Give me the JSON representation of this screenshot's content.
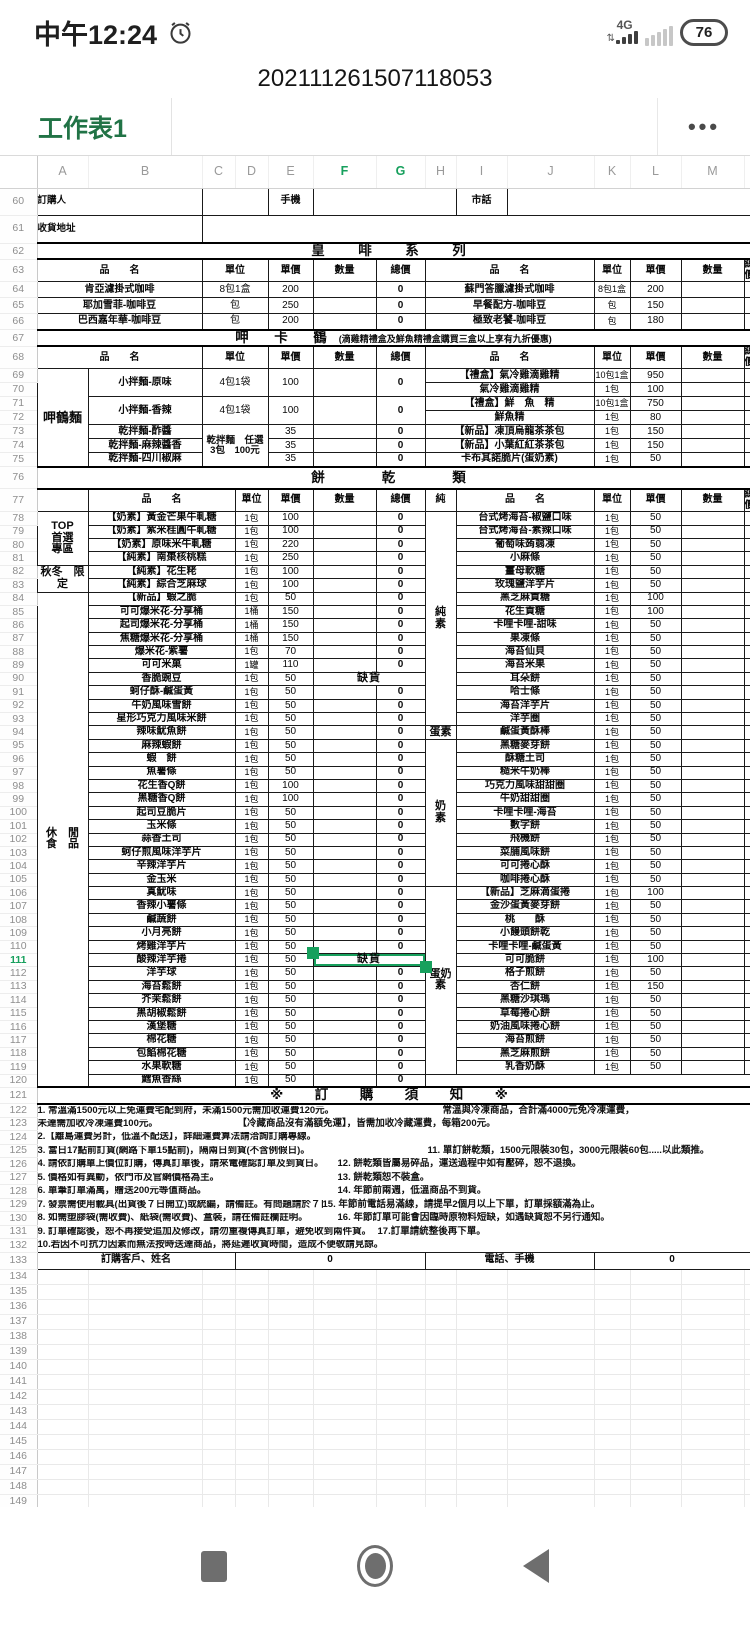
{
  "status_bar": {
    "time": "中午12:24",
    "network": "4G",
    "battery": "76"
  },
  "title_bar": {
    "title": "202111261507118053"
  },
  "tab_bar": {
    "sheet_tab": "工作表1",
    "menu": "•••"
  },
  "grid": {
    "columns": [
      "A",
      "B",
      "C",
      "D",
      "E",
      "F",
      "G",
      "H",
      "I",
      "J",
      "K",
      "L",
      "M"
    ],
    "selected_columns": [
      "F",
      "G"
    ],
    "rows": {
      "start": 60,
      "end": 150
    },
    "selected_row": 111
  },
  "order_info": {
    "buyer": "訂購人",
    "mobile": "手機",
    "tel": "市話",
    "address": "收貨地址"
  },
  "table_headers": {
    "name": "品　　名",
    "unit": "單位",
    "price": "單價",
    "qty": "數量",
    "total": "總價"
  },
  "oos_label": "缺貨",
  "coffee": {
    "title": "皇　啡　系　列",
    "rows": [
      {
        "l": [
          "肯亞濾掛式咖啡",
          "8包1盒",
          "200",
          "0"
        ],
        "r": [
          "蘇門答臘濾掛式咖啡",
          "8包1盒",
          "200"
        ]
      },
      {
        "l": [
          "耶加雪菲-咖啡豆",
          "包",
          "250",
          "0"
        ],
        "r": [
          "早餐配方-咖啡豆",
          "包",
          "150"
        ]
      },
      {
        "l": [
          "巴西嘉年華-咖啡豆",
          "包",
          "200",
          "0"
        ],
        "r": [
          "極致老饕-咖啡豆",
          "包",
          "180"
        ]
      }
    ]
  },
  "noodle": {
    "title": "呷　卡　鶴",
    "note": "(滴雞精禮盒及鮮魚精禮盒購買三盒以上享有九折優惠)",
    "category": "呷鶴麵",
    "combo_unit": "乾拌麵　任選\n3包　100元",
    "left": [
      {
        "name": "小拌麵-原味",
        "unit": "4包1袋",
        "price": "100",
        "total": "0",
        "span": 2
      },
      {
        "name": "小拌麵-香辣",
        "unit": "4包1袋",
        "price": "100",
        "total": "0",
        "span": 2
      },
      {
        "name": "乾拌麵-酢醬",
        "price": "35",
        "total": "0"
      },
      {
        "name": "乾拌麵-麻辣醬香",
        "price": "35",
        "total": "0"
      },
      {
        "name": "乾拌麵-四川椒麻",
        "price": "35",
        "total": "0"
      }
    ],
    "right": [
      [
        "【禮盒】氣冷雞滴雞精",
        "10包1盒",
        "950"
      ],
      [
        "氣冷雞滴雞精",
        "1包",
        "100"
      ],
      [
        "【禮盒】鮮　魚　精",
        "10包1盒",
        "750"
      ],
      [
        "鮮魚精",
        "1包",
        "80"
      ],
      [
        "【新品】凍頂烏龍茶茶包",
        "1包",
        "150"
      ],
      [
        "【新品】小葉紅紅茶茶包",
        "1包",
        "150"
      ],
      [
        "卡布其諾脆片(蛋奶素)",
        "1包",
        "50"
      ]
    ]
  },
  "cookie": {
    "title": "餅　　乾　　類",
    "pure_header": "純",
    "left_categories": [
      {
        "label": "TOP\n首選\n專區",
        "len": 4
      },
      {
        "label": "秋冬　限定",
        "len": 2
      },
      {
        "label": "休　閒\n食　品",
        "len": 37
      }
    ],
    "right_categories": [
      {
        "label": "純\n素",
        "len": 16
      },
      {
        "label": "蛋素",
        "len": 1
      },
      {
        "label": "奶\n素",
        "len": 11
      },
      {
        "label": "蛋奶\n素",
        "len": 14
      }
    ],
    "rows": [
      {
        "l": [
          "【奶素】黃金芒果牛軋糖",
          "1包",
          "100",
          "0"
        ],
        "r": [
          "台式烤海苔-椒鹽口味",
          "1包",
          "50"
        ]
      },
      {
        "l": [
          "【奶素】紫米桂圓牛軋糖",
          "1包",
          "100",
          "0"
        ],
        "r": [
          "台式烤海苔-素辣口味",
          "1包",
          "50"
        ]
      },
      {
        "l": [
          "【奶素】原味米牛軋糖",
          "1包",
          "220",
          "0"
        ],
        "r": [
          "葡萄味蒟蒻凍",
          "1包",
          "50"
        ]
      },
      {
        "l": [
          "【純素】南棗核桃糕",
          "1包",
          "250",
          "0"
        ],
        "r": [
          "小麻條",
          "1包",
          "50"
        ]
      },
      {
        "l": [
          "【純素】花生粩",
          "1包",
          "100",
          "0"
        ],
        "r": [
          "薑母軟糖",
          "1包",
          "50"
        ]
      },
      {
        "l": [
          "【純素】綜合芝麻球",
          "1包",
          "100",
          "0"
        ],
        "r": [
          "玫瑰鹽洋芋片",
          "1包",
          "50"
        ]
      },
      {
        "l": [
          "【新品】蝦之脆",
          "1包",
          "50",
          "0"
        ],
        "r": [
          "黑芝麻貢糖",
          "1包",
          "100"
        ]
      },
      {
        "l": [
          "可可爆米花-分享桶",
          "1桶",
          "150",
          "0"
        ],
        "r": [
          "花生貢糖",
          "1包",
          "100"
        ]
      },
      {
        "l": [
          "起司爆米花-分享桶",
          "1桶",
          "150",
          "0"
        ],
        "r": [
          "卡哩卡哩-甜味",
          "1包",
          "50"
        ]
      },
      {
        "l": [
          "焦糖爆米花-分享桶",
          "1桶",
          "150",
          "0"
        ],
        "r": [
          "果凍條",
          "1包",
          "50"
        ]
      },
      {
        "l": [
          "爆米花-紫薯",
          "1包",
          "70",
          "0"
        ],
        "r": [
          "海苔仙貝",
          "1包",
          "50"
        ]
      },
      {
        "l": [
          "可可米菓",
          "1罐",
          "110",
          "0"
        ],
        "r": [
          "海苔米果",
          "1包",
          "50"
        ]
      },
      {
        "l": [
          "香脆豌豆",
          "1包",
          "50",
          "缺貨"
        ],
        "r": [
          "耳朵餅",
          "1包",
          "50"
        ]
      },
      {
        "l": [
          "蚵仔酥-鹹蛋黃",
          "1包",
          "50",
          "0"
        ],
        "r": [
          "哈士條",
          "1包",
          "50"
        ]
      },
      {
        "l": [
          "牛奶風味雪餅",
          "1包",
          "50",
          "0"
        ],
        "r": [
          "海苔洋芋片",
          "1包",
          "50"
        ]
      },
      {
        "l": [
          "星形巧克力風味米餅",
          "1包",
          "50",
          "0"
        ],
        "r": [
          "洋芋圈",
          "1包",
          "50"
        ]
      },
      {
        "l": [
          "辣味魷魚餅",
          "1包",
          "50",
          "0"
        ],
        "r": [
          "鹹蛋黃酥棒",
          "1包",
          "50"
        ]
      },
      {
        "l": [
          "麻辣蝦餅",
          "1包",
          "50",
          "0"
        ],
        "r": [
          "黑糖麥芽餅",
          "1包",
          "50"
        ]
      },
      {
        "l": [
          "蝦　餅",
          "1包",
          "50",
          "0"
        ],
        "r": [
          "酥糖土司",
          "1包",
          "50"
        ]
      },
      {
        "l": [
          "魚薯條",
          "1包",
          "50",
          "0"
        ],
        "r": [
          "糙米牛奶棒",
          "1包",
          "50"
        ]
      },
      {
        "l": [
          "花生香Q餅",
          "1包",
          "100",
          "0"
        ],
        "r": [
          "巧克力風味甜甜圈",
          "1包",
          "50"
        ]
      },
      {
        "l": [
          "黑糖香Q餅",
          "1包",
          "100",
          "0"
        ],
        "r": [
          "牛奶甜甜圈",
          "1包",
          "50"
        ]
      },
      {
        "l": [
          "起司豆脆片",
          "1包",
          "50",
          "0"
        ],
        "r": [
          "卡哩卡哩-海苔",
          "1包",
          "50"
        ]
      },
      {
        "l": [
          "玉米條",
          "1包",
          "50",
          "0"
        ],
        "r": [
          "數字餅",
          "1包",
          "50"
        ]
      },
      {
        "l": [
          "蒜香土司",
          "1包",
          "50",
          "0"
        ],
        "r": [
          "飛機餅",
          "1包",
          "50"
        ]
      },
      {
        "l": [
          "蚵仔煎風味洋芋片",
          "1包",
          "50",
          "0"
        ],
        "r": [
          "菜脯風味餅",
          "1包",
          "50"
        ]
      },
      {
        "l": [
          "辛辣洋芋片",
          "1包",
          "50",
          "0"
        ],
        "r": [
          "可可捲心酥",
          "1包",
          "50"
        ]
      },
      {
        "l": [
          "金玉米",
          "1包",
          "50",
          "0"
        ],
        "r": [
          "咖啡捲心酥",
          "1包",
          "50"
        ]
      },
      {
        "l": [
          "真魷味",
          "1包",
          "50",
          "0"
        ],
        "r": [
          "【新品】芝麻滴蛋捲",
          "1包",
          "100"
        ]
      },
      {
        "l": [
          "香辣小薯條",
          "1包",
          "50",
          "0"
        ],
        "r": [
          "金沙蛋黃麥芽餅",
          "1包",
          "50"
        ]
      },
      {
        "l": [
          "鹹蔬餅",
          "1包",
          "50",
          "0"
        ],
        "r": [
          "桃　　酥",
          "1包",
          "50"
        ]
      },
      {
        "l": [
          "小月亮餅",
          "1包",
          "50",
          "0"
        ],
        "r": [
          "小饅頭餅乾",
          "1包",
          "50"
        ]
      },
      {
        "l": [
          "烤雞洋芋片",
          "1包",
          "50",
          "0"
        ],
        "r": [
          "卡哩卡哩-鹹蛋黃",
          "1包",
          "50"
        ]
      },
      {
        "l": [
          "酸辣洋芋捲",
          "1包",
          "50",
          "缺貨"
        ],
        "r": [
          "可可脆餅",
          "1包",
          "100"
        ]
      },
      {
        "l": [
          "洋芋球",
          "1包",
          "50",
          "0"
        ],
        "r": [
          "格子煎餅",
          "1包",
          "50"
        ]
      },
      {
        "l": [
          "海苔鬆餅",
          "1包",
          "50",
          "0"
        ],
        "r": [
          "杏仁餅",
          "1包",
          "150"
        ]
      },
      {
        "l": [
          "芥茉鬆餅",
          "1包",
          "50",
          "0"
        ],
        "r": [
          "黑糖沙琪瑪",
          "1包",
          "50"
        ]
      },
      {
        "l": [
          "黑胡椒鬆餅",
          "1包",
          "50",
          "0"
        ],
        "r": [
          "草莓捲心餅",
          "1包",
          "50"
        ]
      },
      {
        "l": [
          "漢堡糖",
          "1包",
          "50",
          "0"
        ],
        "r": [
          "奶油風味捲心餅",
          "1包",
          "50"
        ]
      },
      {
        "l": [
          "棉花糖",
          "1包",
          "50",
          "0"
        ],
        "r": [
          "海苔煎餅",
          "1包",
          "50"
        ]
      },
      {
        "l": [
          "包餡棉花糖",
          "1包",
          "50",
          "0"
        ],
        "r": [
          "黑芝麻煎餅",
          "1包",
          "50"
        ]
      },
      {
        "l": [
          "水果軟糖",
          "1包",
          "50",
          "0"
        ],
        "r": [
          "乳香奶酥",
          "1包",
          "50"
        ]
      },
      {
        "l": [
          "鱈魚香絲",
          "1包",
          "50",
          "0"
        ],
        "r": null
      }
    ]
  },
  "notes": {
    "title": "※　訂　購　須　知　※",
    "lines": [
      {
        "l": "1. 常溫滿1500元以上免運費宅配到府，未滿1500元需加收運費120元。",
        "r": "常溫與冷凍商品，合計滿4000元免冷凍運費，"
      },
      {
        "l": "未達需加收冷凍運費100元。",
        "r": "【冷藏商品沒有滿額免運】，皆需加收冷藏運費，每箱200元。"
      },
      {
        "l": "2.【離島運費另計，低溫不配送】，詳細運費算法請洽詢訂購專線。",
        "r": ""
      },
      {
        "l": "3. 當日17點前訂貨(網路下單15點前)，隔兩日到貨(不含例假日)。",
        "r": "11. 單訂餅乾類，1500元限裝30包，3000元限裝60包.....以此類推。"
      },
      {
        "l": "4. 請依訂購單上價位訂購，傳真訂單後，請來電確認訂單及到貨日。",
        "r": "12. 餅乾類皆屬易碎品，運送過程中如有壓碎，恕不退換。"
      },
      {
        "l": "5. 價格如有異動，依門市及官網價格為主。",
        "r": "13. 餅乾類恕不裝盒。"
      },
      {
        "l": "6. 單筆訂單滿萬，贈送200元等值商品。",
        "r": "14. 年節前兩週，低溫商品不到貨。"
      },
      {
        "l": "7. 發票需使用載具(出貨後７日開立)或統編，請備註。有問題請於７日內換取。",
        "r": "15. 年節前電話易滿線，請提早2個月以上下單，訂單採額滿為止。"
      },
      {
        "l": "8. 如需塑膠袋(需收費)、紙袋(需收費)、盒裝，請在備註欄註明。",
        "r": "16. 年節訂單可能會因臨時原物料短缺，如遇缺貨恕不另行通知。"
      },
      {
        "l": "9. 訂單確認後，恕不再接受追加及修改，請勿重複傳真訂單，避免收到兩件貨。",
        "r": "17.訂單請統整後再下單。"
      },
      {
        "l": "10.若因不可抗力因素而無法按時送達商品，將延遲收貨時間，造成不便敬請見諒。",
        "r": ""
      }
    ]
  },
  "footer_row": {
    "customer_label": "訂購客戶、姓名",
    "customer_value": "0",
    "phone_label": "電話、手機",
    "phone_value": "0"
  }
}
